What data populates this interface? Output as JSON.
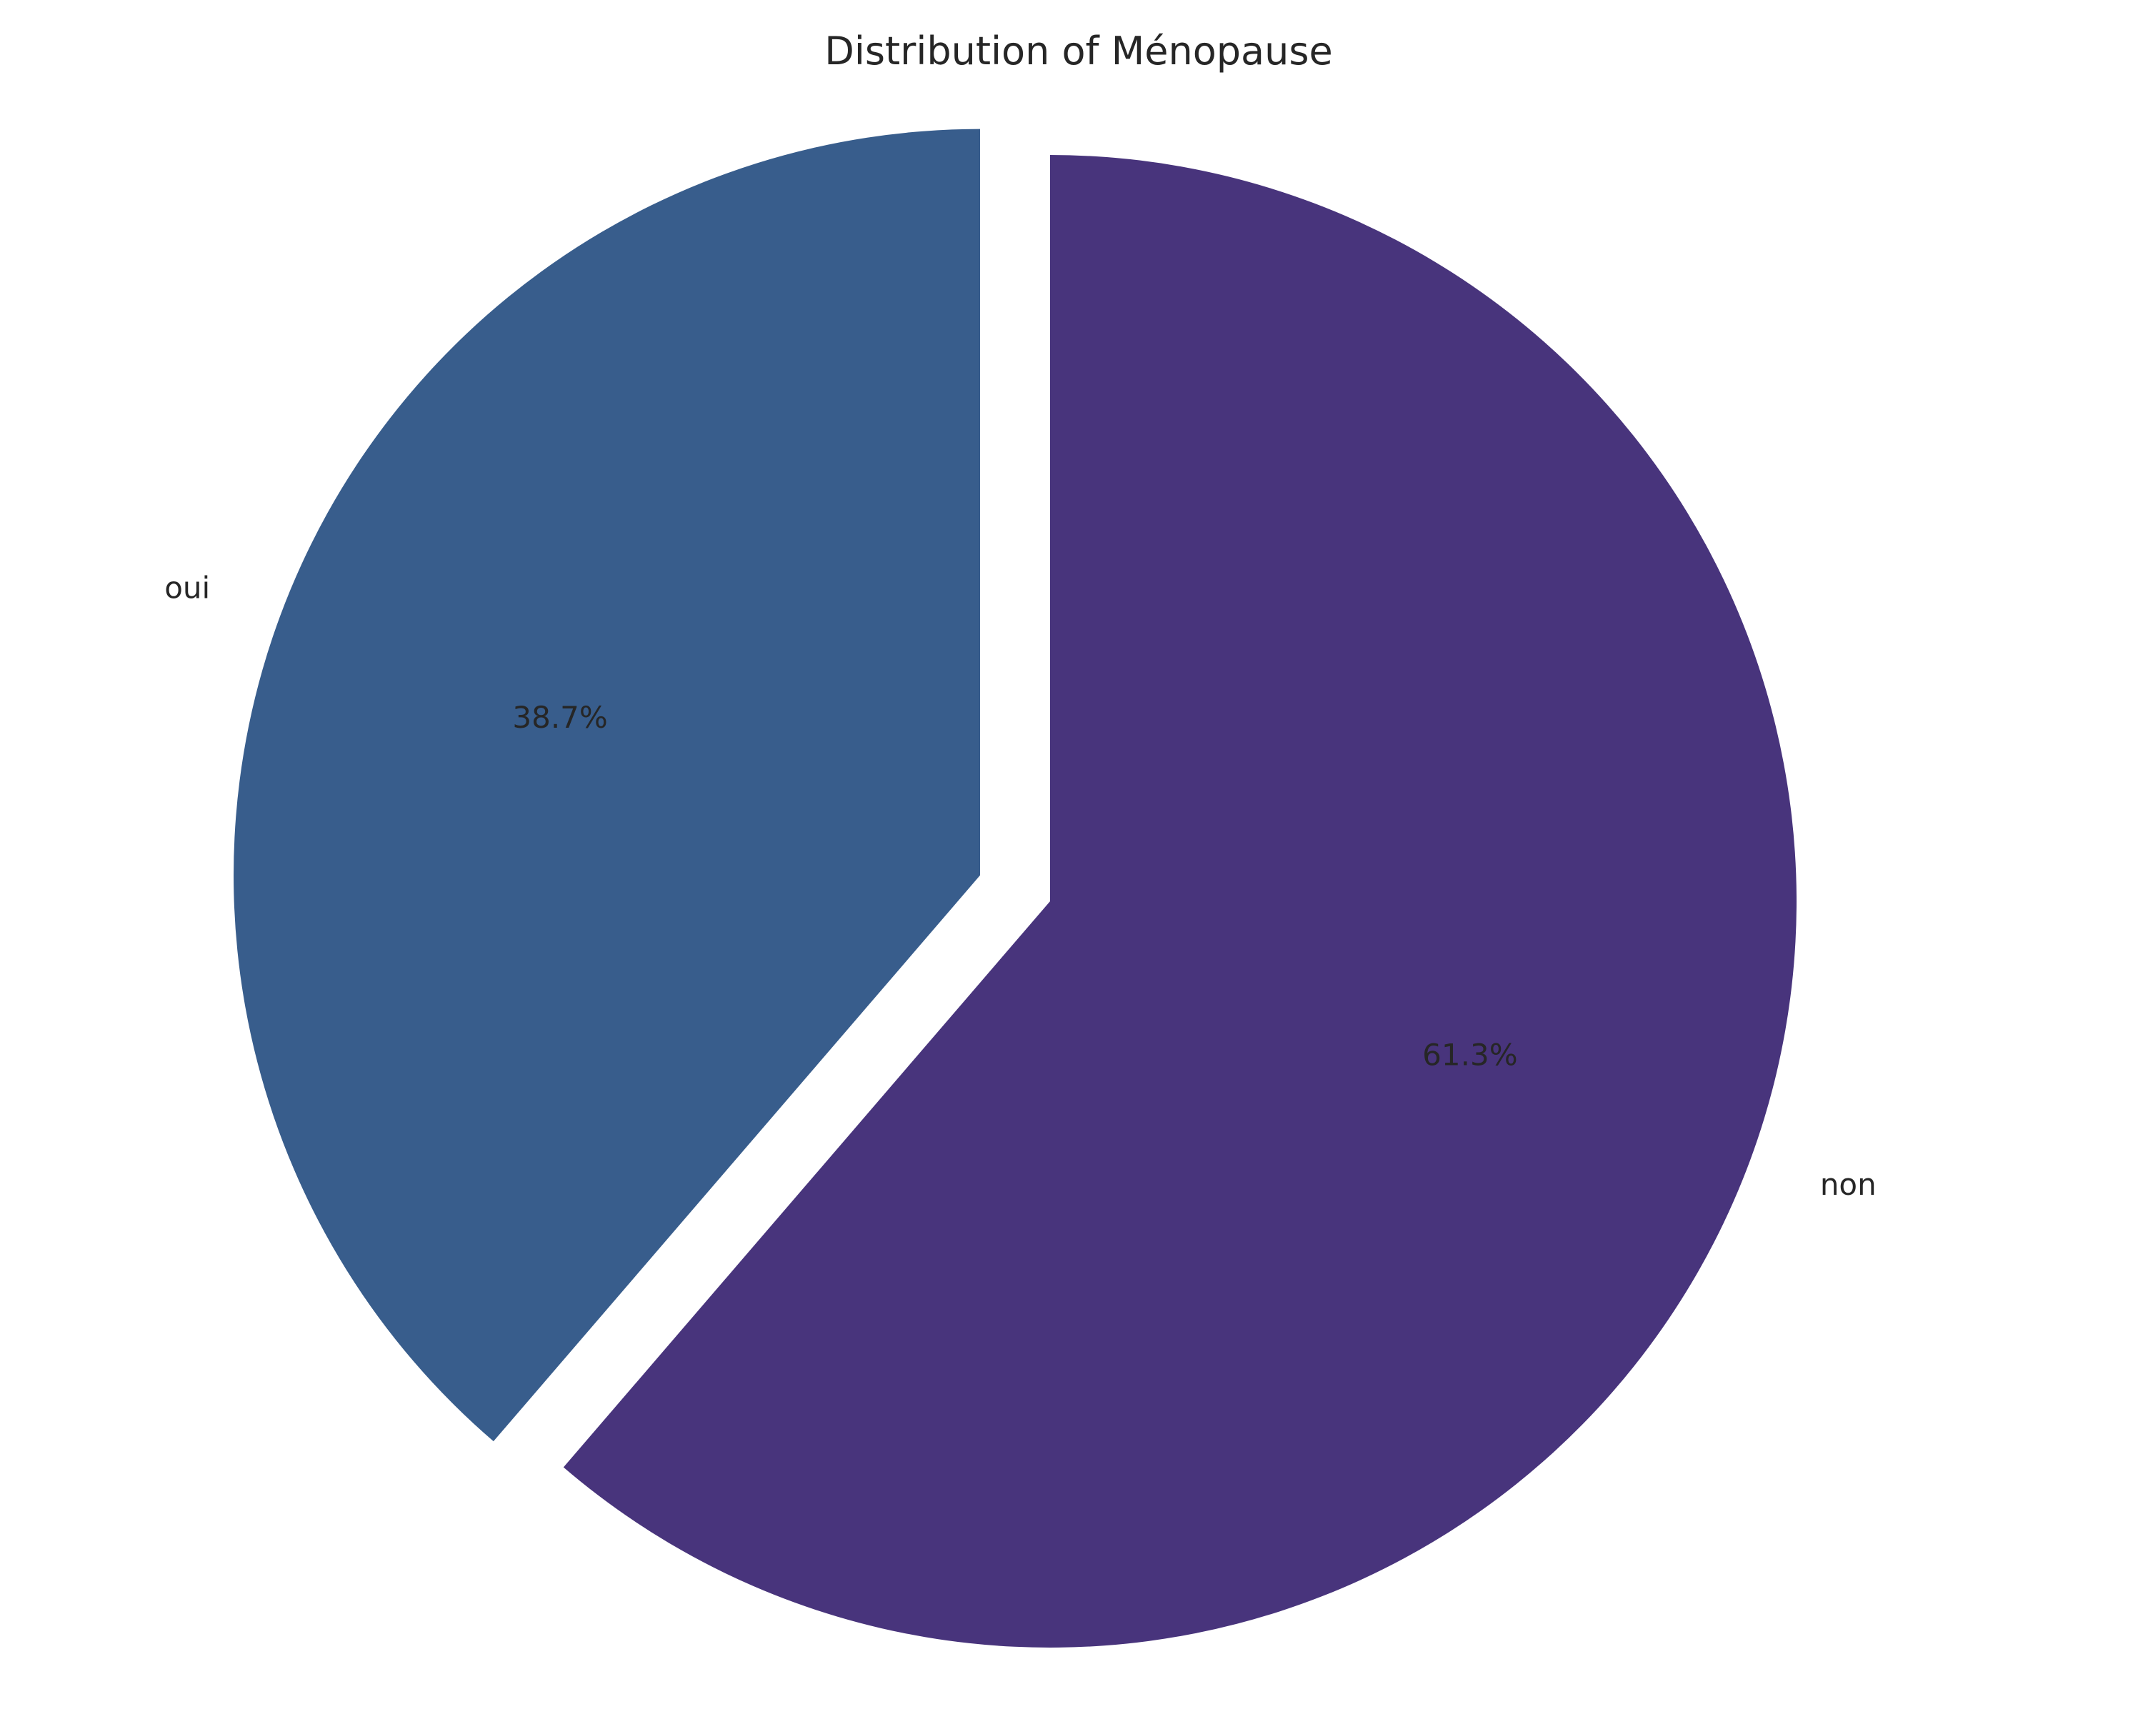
{
  "chart_data": {
    "type": "pie",
    "title": "Distribution of Ménopause",
    "start_angle_deg": 90,
    "direction": "clockwise",
    "slices": [
      {
        "label": "non",
        "value": 61.3,
        "pct_label": "61.3%",
        "color": "#48347c",
        "exploded": false
      },
      {
        "label": "oui",
        "value": 38.7,
        "pct_label": "38.7%",
        "color": "#385d8c",
        "exploded": true
      }
    ],
    "legend": "none",
    "grid": false
  }
}
